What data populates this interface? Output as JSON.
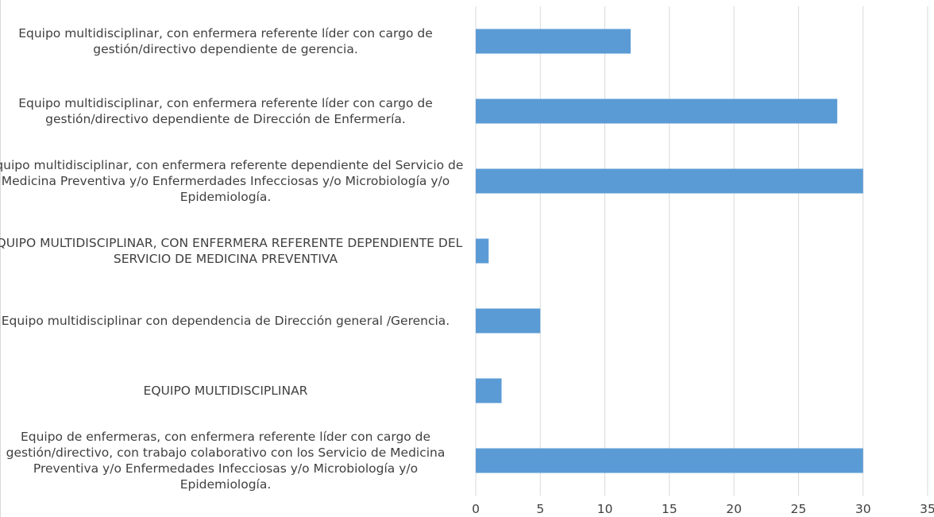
{
  "chart_data": {
    "type": "bar",
    "orientation": "horizontal",
    "categories": [
      "Equipo multidisciplinar, con enfermera referente líder con cargo de gestión/directivo dependiente de gerencia.",
      "Equipo multidisciplinar, con enfermera referente líder con cargo de gestión/directivo dependiente de Dirección de Enfermería.",
      "Equipo multidisciplinar, con enfermera referente dependiente del Servicio de Medicina Preventiva y/o Enfermerdades Infecciosas y/o Microbiología y/o Epidemiología.",
      "EQUIPO MULTIDISCIPLINAR, CON ENFERMERA REFERENTE DEPENDIENTE DEL SERVICIO DE MEDICINA PREVENTIVA",
      "Equipo multidisciplinar con dependencia de Dirección general /Gerencia.",
      "EQUIPO MULTIDISCIPLINAR",
      "Equipo de enfermeras, con enfermera referente líder con cargo de gestión/directivo, con trabajo colaborativo con los Servicio de Medicina Preventiva y/o Enfermedades Infecciosas y/o Microbiología y/o Epidemiología."
    ],
    "values": [
      12,
      28,
      30,
      1,
      5,
      2,
      30
    ],
    "xlim": [
      0,
      35
    ],
    "xticks": [
      "0",
      "5",
      "10",
      "15",
      "20",
      "25",
      "30",
      "35"
    ],
    "grid": true,
    "bar_color": "#5b9bd5",
    "title": "",
    "xlabel": "",
    "ylabel": ""
  }
}
